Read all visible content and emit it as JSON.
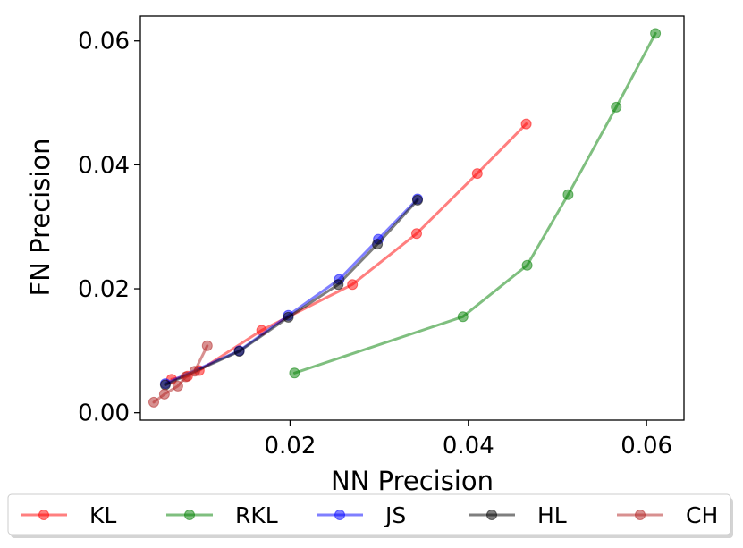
{
  "chart_data": {
    "type": "line",
    "title": "",
    "xlabel": "NN Precision",
    "ylabel": "FN Precision",
    "xlim": [
      0.0032,
      0.0642
    ],
    "ylim": [
      -0.0012,
      0.064
    ],
    "xticks": [
      0.02,
      0.04,
      0.06
    ],
    "xtick_labels": [
      "0.02",
      "0.04",
      "0.06"
    ],
    "yticks": [
      0.0,
      0.02,
      0.04,
      0.06
    ],
    "ytick_labels": [
      "0.00",
      "0.02",
      "0.04",
      "0.06"
    ],
    "grid": false,
    "legend_position": "bottom-center",
    "series": [
      {
        "name": "KL",
        "color": "#ff0000",
        "x": [
          0.0067,
          0.0085,
          0.0098,
          0.0168,
          0.027,
          0.0342,
          0.041,
          0.0465
        ],
        "y": [
          0.0054,
          0.0059,
          0.0068,
          0.0133,
          0.0207,
          0.0289,
          0.0386,
          0.0466
        ]
      },
      {
        "name": "RKL",
        "color": "#008000",
        "x": [
          0.0205,
          0.0394,
          0.0466,
          0.0512,
          0.0566,
          0.061
        ],
        "y": [
          0.0064,
          0.0155,
          0.0238,
          0.0352,
          0.0493,
          0.0612
        ]
      },
      {
        "name": "JS",
        "color": "#0000ff",
        "x": [
          0.006,
          0.0143,
          0.0198,
          0.0255,
          0.0299,
          0.0343
        ],
        "y": [
          0.0047,
          0.01,
          0.0157,
          0.0215,
          0.028,
          0.0345
        ]
      },
      {
        "name": "HL",
        "color": "#000000",
        "x": [
          0.006,
          0.0143,
          0.0198,
          0.0254,
          0.0298,
          0.0343
        ],
        "y": [
          0.0045,
          0.0099,
          0.0154,
          0.0207,
          0.0272,
          0.0343
        ]
      },
      {
        "name": "CH",
        "color": "#b22222",
        "x": [
          0.0047,
          0.0059,
          0.0074,
          0.0083,
          0.0093,
          0.0107
        ],
        "y": [
          0.0017,
          0.003,
          0.0043,
          0.0058,
          0.0067,
          0.0108
        ]
      }
    ]
  }
}
